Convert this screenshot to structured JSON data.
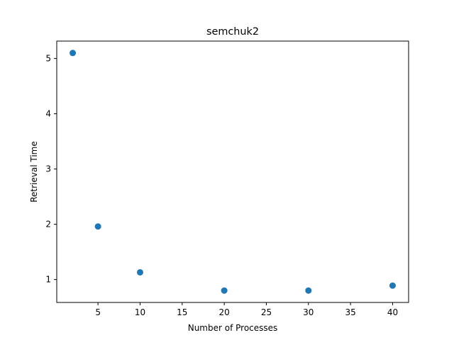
{
  "chart_data": {
    "type": "scatter",
    "title": "semchuk2",
    "xlabel": "Number of Processes",
    "ylabel": "Retrieval Time",
    "x": [
      2,
      5,
      10,
      20,
      30,
      40
    ],
    "y": [
      5.1,
      1.96,
      1.13,
      0.8,
      0.8,
      0.89
    ],
    "xlim": [
      0.1,
      41.9
    ],
    "ylim": [
      0.585,
      5.315
    ],
    "xticks": [
      5,
      10,
      15,
      20,
      25,
      30,
      35,
      40
    ],
    "yticks": [
      1,
      2,
      3,
      4,
      5
    ],
    "grid": false,
    "colors": {
      "marker": "#1f77b4",
      "axes": "#000000",
      "background": "#ffffff"
    }
  }
}
